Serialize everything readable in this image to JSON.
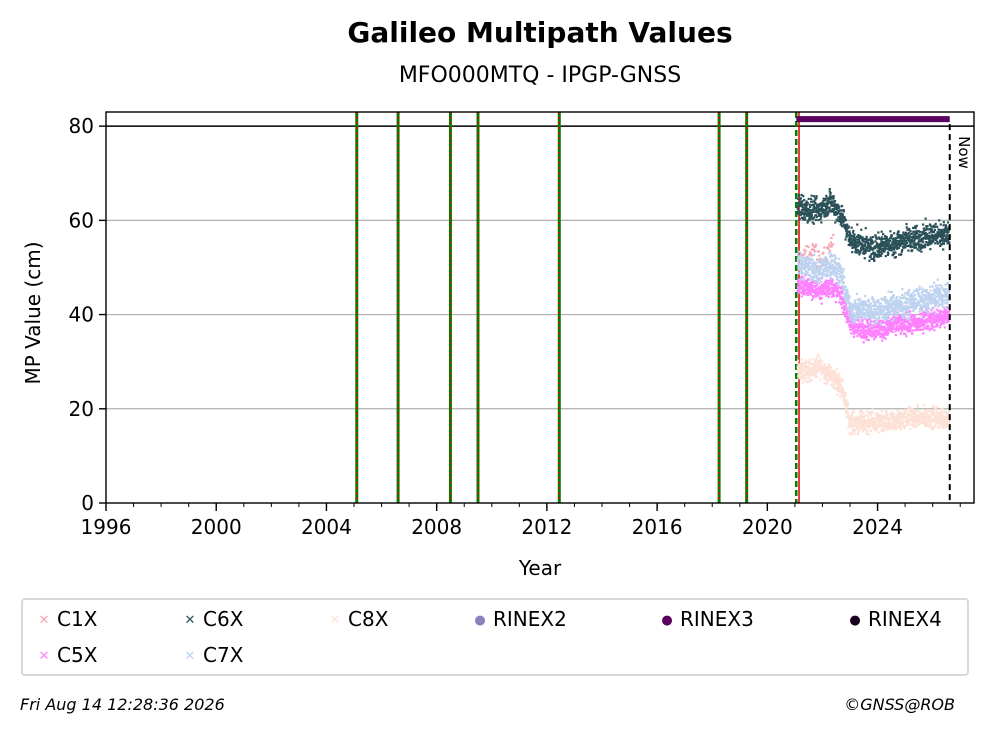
{
  "chart_data": {
    "type": "scatter",
    "title": "Galileo Multipath Values",
    "subtitle": "MFO000MTQ - IPGP-GNSS",
    "xlabel": "Year",
    "ylabel": "MP Value (cm)",
    "xlim": [
      1996,
      2027.5
    ],
    "ylim": [
      0,
      83
    ],
    "x_ticks": [
      "1996",
      "2000",
      "2004",
      "2008",
      "2012",
      "2016",
      "2020",
      "2024"
    ],
    "y_ticks": [
      "0",
      "20",
      "40",
      "60",
      "80"
    ],
    "grid": "horizontal",
    "reference_line": 80,
    "now_label": "Now",
    "now_x": 2026.62,
    "event_lines_green_red": [
      2005.1,
      2006.6,
      2008.5,
      2009.5,
      2012.45,
      2018.25,
      2019.25
    ],
    "event_line_green_dashed": 2021.05,
    "event_line_red": 2021.15,
    "rinex3_bar": {
      "start": 2021.05,
      "end": 2026.62,
      "y": 81.5
    },
    "series": [
      {
        "name": "C1X",
        "color": "#f4a6b4",
        "marker": "x",
        "x": [
          2021.2,
          2021.6,
          2022.0,
          2022.4
        ],
        "values": [
          52,
          54,
          51,
          56
        ]
      },
      {
        "name": "C5X",
        "color": "#ff80ff",
        "marker": "x",
        "x": [
          2021.1,
          2021.5,
          2021.9,
          2022.3,
          2022.7,
          2023.0,
          2023.4,
          2023.8,
          2024.2,
          2024.6,
          2025.0,
          2025.4,
          2025.8,
          2026.2,
          2026.6
        ],
        "values": [
          46,
          46,
          45,
          46,
          44,
          38,
          37,
          37,
          37,
          38,
          38,
          38,
          39,
          39,
          40
        ]
      },
      {
        "name": "C6X",
        "color": "#2a5159",
        "marker": "x",
        "x": [
          2021.1,
          2021.5,
          2021.9,
          2022.3,
          2022.7,
          2023.0,
          2023.4,
          2023.8,
          2024.2,
          2024.6,
          2025.0,
          2025.4,
          2025.8,
          2026.2,
          2026.6
        ],
        "values": [
          63,
          62,
          62,
          64,
          61,
          56,
          55,
          54,
          55,
          55,
          56,
          56,
          57,
          57,
          57
        ]
      },
      {
        "name": "C7X",
        "color": "#bdd3ef",
        "marker": "x",
        "x": [
          2021.1,
          2021.5,
          2021.9,
          2022.3,
          2022.7,
          2023.0,
          2023.4,
          2023.8,
          2024.2,
          2024.6,
          2025.0,
          2025.4,
          2025.8,
          2026.2,
          2026.6
        ],
        "values": [
          51,
          50,
          49,
          51,
          48,
          41,
          41,
          41,
          41,
          42,
          42,
          43,
          43,
          44,
          44
        ]
      },
      {
        "name": "C8X",
        "color": "#fde0d6",
        "marker": "x",
        "x": [
          2021.1,
          2021.5,
          2021.9,
          2022.3,
          2022.7,
          2023.0,
          2023.4,
          2023.8,
          2024.2,
          2024.6,
          2025.0,
          2025.4,
          2025.8,
          2026.2,
          2026.6
        ],
        "values": [
          28,
          28,
          29,
          27,
          25,
          17,
          17,
          17,
          17,
          17,
          18,
          18,
          18,
          18,
          18
        ]
      },
      {
        "name": "RINEX2",
        "color": "#8c7fc0",
        "marker": "dot",
        "x": [],
        "values": []
      },
      {
        "name": "RINEX3",
        "color": "#5a005f",
        "marker": "dot",
        "x": [],
        "values": []
      },
      {
        "name": "RINEX4",
        "color": "#1a001f",
        "marker": "dot",
        "x": [],
        "values": []
      }
    ]
  },
  "legend": [
    {
      "label": "C1X",
      "color": "#f4a6b4",
      "glyph": "✕"
    },
    {
      "label": "C6X",
      "color": "#2a5159",
      "glyph": "✕"
    },
    {
      "label": "C8X",
      "color": "#fde0d6",
      "glyph": "✕"
    },
    {
      "label": "RINEX2",
      "color": "#8c7fc0",
      "glyph": "●"
    },
    {
      "label": "RINEX3",
      "color": "#5a005f",
      "glyph": "●"
    },
    {
      "label": "RINEX4",
      "color": "#1a001f",
      "glyph": "●"
    },
    {
      "label": "C5X",
      "color": "#ff80ff",
      "glyph": "✕"
    },
    {
      "label": "C7X",
      "color": "#bdd3ef",
      "glyph": "✕"
    }
  ],
  "footer": {
    "timestamp": "Fri Aug 14 12:28:36 2026",
    "credit": "©GNSS@ROB"
  }
}
